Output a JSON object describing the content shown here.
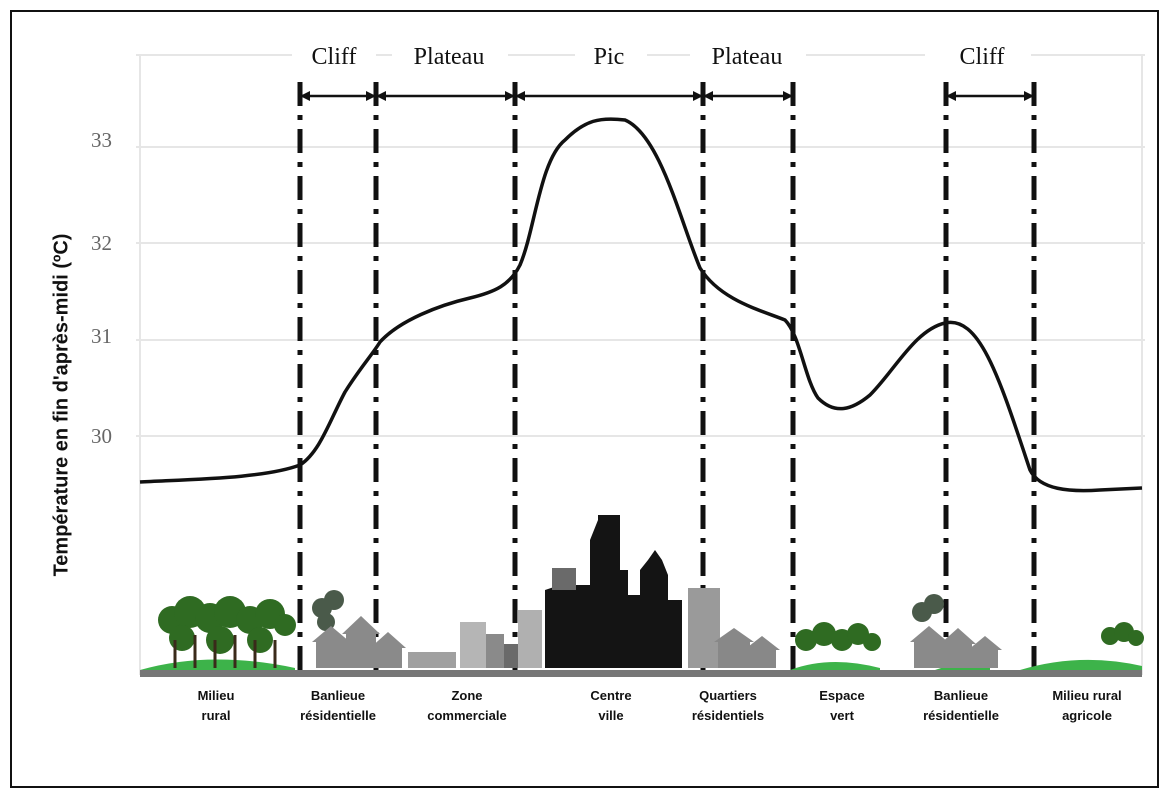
{
  "y_axis_label": "Température en fin d'après-midi (ºC)",
  "y_ticks": [
    "33",
    "32",
    "31",
    "30"
  ],
  "section_labels": [
    "Cliff",
    "Plateau",
    "Pic",
    "Plateau",
    "Cliff"
  ],
  "zones": [
    {
      "line1": "Milieu",
      "line2": "rural"
    },
    {
      "line1": "Banlieue",
      "line2": "résidentielle"
    },
    {
      "line1": "Zone",
      "line2": "commerciale"
    },
    {
      "line1": "Centre",
      "line2": "ville"
    },
    {
      "line1": "Quartiers",
      "line2": "résidentiels"
    },
    {
      "line1": "Espace",
      "line2": "vert"
    },
    {
      "line1": "Banlieue",
      "line2": "résidentielle"
    },
    {
      "line1": "Milieu rural",
      "line2": "agricole"
    }
  ],
  "colors": {
    "curve": "#111111",
    "grid": "#e6e6e6",
    "tree": "#2f6b22",
    "grass": "#3db34a",
    "ground": "#777777",
    "building_dark": "#141414",
    "building_gray": "#9a9a9a",
    "house": "#888888"
  }
}
